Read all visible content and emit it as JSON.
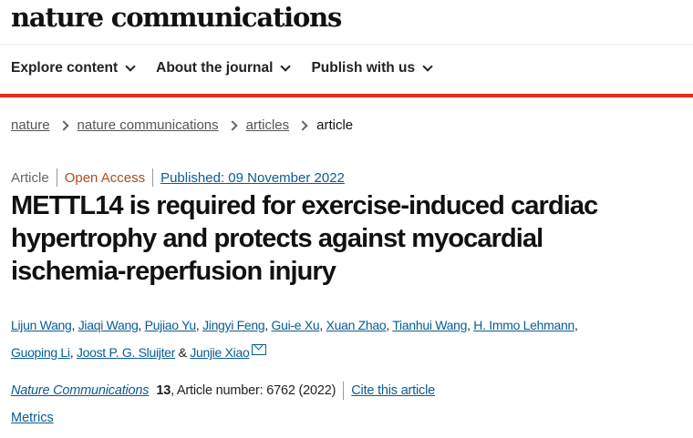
{
  "header": {
    "logo": "nature communications",
    "nav": [
      {
        "label": "Explore content"
      },
      {
        "label": "About the journal"
      },
      {
        "label": "Publish with us"
      }
    ],
    "accent": "#e0301e"
  },
  "breadcrumb": [
    "nature",
    "nature communications",
    "articles",
    "article"
  ],
  "article": {
    "type": "Article",
    "access": "Open Access",
    "published": "Published: 09 November 2022",
    "title": "METTL14 is required for exercise-induced cardiac hypertrophy and protects against myocardial ischemia-reperfusion injury",
    "authors": [
      "Lijun Wang",
      "Jiaqi Wang",
      "Pujiao Yu",
      "Jingyi Feng",
      "Gui-e Xu",
      "Xuan Zhao",
      "Tianhui Wang",
      "H. Immo Lehmann",
      "Guoping Li",
      "Joost P. G. Sluijter",
      "Junjie Xiao"
    ],
    "sep_comma": ", ",
    "sep_and": " & ",
    "journal": "Nature Communications",
    "volume": "13",
    "article_number": ", Article number: 6762 (2022)",
    "cite": "Cite this article",
    "metrics": "Metrics"
  }
}
